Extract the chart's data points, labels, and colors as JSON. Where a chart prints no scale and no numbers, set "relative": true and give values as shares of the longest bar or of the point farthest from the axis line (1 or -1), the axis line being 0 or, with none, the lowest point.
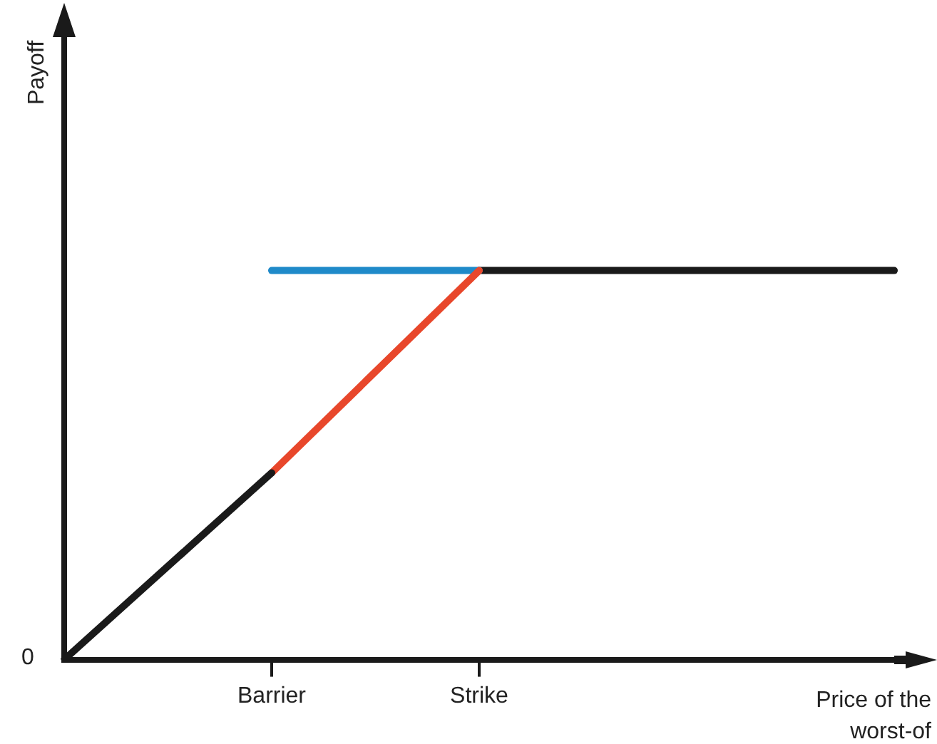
{
  "chart_data": {
    "type": "line",
    "relative": true,
    "categories": [
      null,
      "Barrier",
      "Strike",
      null,
      null
    ],
    "xlabel": "Price of the worst-of",
    "annotations": [
      "0",
      "Payoff"
    ],
    "legend": false,
    "grid": false,
    "marker": "none",
    "line_style": "solid",
    "series": [
      {
        "color": "#1a1a1a",
        "values": [
          0,
          0.48,
          null,
          null,
          null
        ]
      },
      {
        "color": "#e8472b",
        "values": [
          null,
          0.48,
          1,
          null,
          null
        ]
      },
      {
        "color": "#1f8ac9",
        "values": [
          null,
          1,
          1,
          null,
          null
        ]
      },
      {
        "color": "#1a1a1a",
        "values": [
          null,
          null,
          1,
          1,
          1
        ]
      }
    ]
  }
}
